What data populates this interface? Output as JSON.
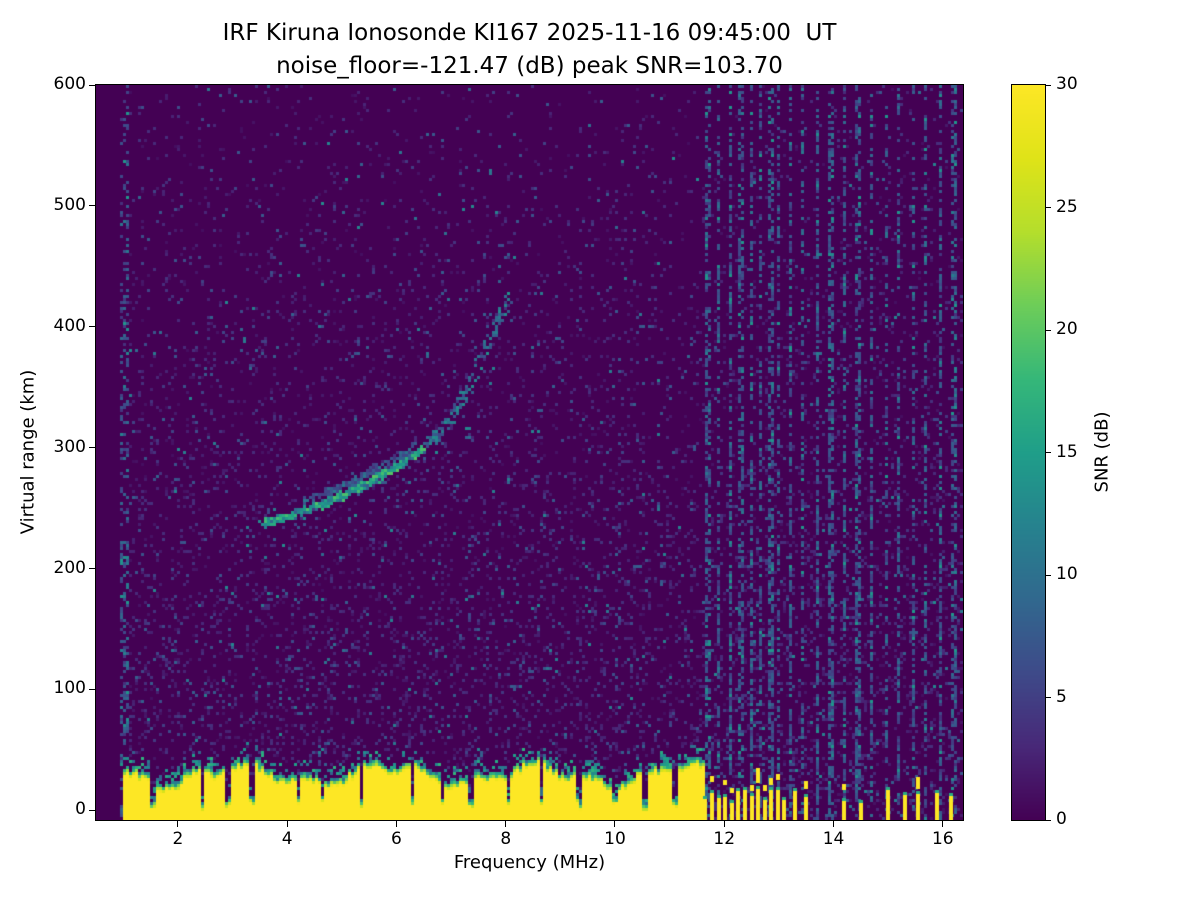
{
  "chart_data": {
    "type": "heatmap",
    "title": "IRF Kiruna Ionosonde KI167 2025-11-16 09:45:00  UT",
    "subtitle": "noise_floor=-121.47 (dB) peak SNR=103.70",
    "station": "IRF Kiruna Ionosonde KI167",
    "timestamp_ut": "2025-11-16 09:45:00",
    "noise_floor_db": -121.47,
    "peak_snr_db": 103.7,
    "xlabel": "Frequency (MHz)",
    "ylabel": "Virtual range (km)",
    "xlim": [
      0.5,
      16.37
    ],
    "ylim": [
      -8,
      600
    ],
    "xticks": [
      2,
      4,
      6,
      8,
      10,
      12,
      14,
      16
    ],
    "yticks": [
      0,
      100,
      200,
      300,
      400,
      500,
      600
    ],
    "colormap": "viridis",
    "background_color": "#440154",
    "peak_color": "#fde725",
    "colorbar": {
      "label": "SNR (dB)",
      "min": 0,
      "max": 30,
      "ticks": [
        0,
        5,
        10,
        15,
        20,
        25,
        30
      ]
    },
    "features": {
      "ground_clutter": {
        "freq_range_mhz": [
          1.0,
          11.62
        ],
        "top_km_mean": 30,
        "snr_db": 30,
        "notch_freqs_mhz": [
          1.55,
          2.45,
          2.9,
          3.35,
          4.2,
          4.65,
          5.35,
          6.3,
          6.85,
          7.35,
          8.05,
          8.65,
          9.35,
          10.0,
          10.55,
          11.1
        ]
      },
      "echo_trace_main": {
        "points_mhz_km": [
          [
            3.55,
            237
          ],
          [
            4.0,
            243
          ],
          [
            4.5,
            250
          ],
          [
            5.0,
            260
          ],
          [
            5.5,
            271
          ],
          [
            6.0,
            284
          ],
          [
            6.5,
            300
          ]
        ],
        "snr_db": 16
      },
      "echo_trace_second": {
        "points_mhz_km": [
          [
            4.3,
            256
          ],
          [
            4.9,
            266
          ],
          [
            5.5,
            279
          ],
          [
            6.1,
            294
          ],
          [
            6.35,
            301
          ]
        ],
        "snr_db": 8
      },
      "echo_trace_upper": {
        "points_mhz_km": [
          [
            6.55,
            303
          ],
          [
            6.9,
            318
          ],
          [
            7.2,
            338
          ],
          [
            7.5,
            370
          ],
          [
            7.8,
            398
          ],
          [
            8.1,
            425
          ]
        ],
        "snr_db": 10
      },
      "vertical_smear": {
        "freq_mhz": 10.05,
        "range_km": [
          90,
          270
        ],
        "snr_db": 6
      },
      "interference_comb_mhz": [
        11.65,
        11.78,
        11.9,
        12.02,
        12.14,
        12.26,
        12.38,
        12.5,
        12.62,
        12.74,
        12.86,
        12.98,
        13.1
      ],
      "interference_sparse_mhz": [
        13.3,
        13.5,
        14.2,
        14.5,
        15.0,
        15.3,
        15.55,
        15.9,
        16.15
      ],
      "interference_columns_mhz": [
        11.7,
        11.9,
        12.1,
        12.3,
        12.5,
        12.65,
        12.85,
        13.0,
        13.2,
        13.45,
        13.7,
        13.95,
        14.2,
        14.45,
        14.7,
        14.95,
        15.2,
        15.45,
        15.7,
        15.95,
        16.2
      ],
      "noise_speckle_db_range": [
        0,
        13
      ]
    }
  }
}
